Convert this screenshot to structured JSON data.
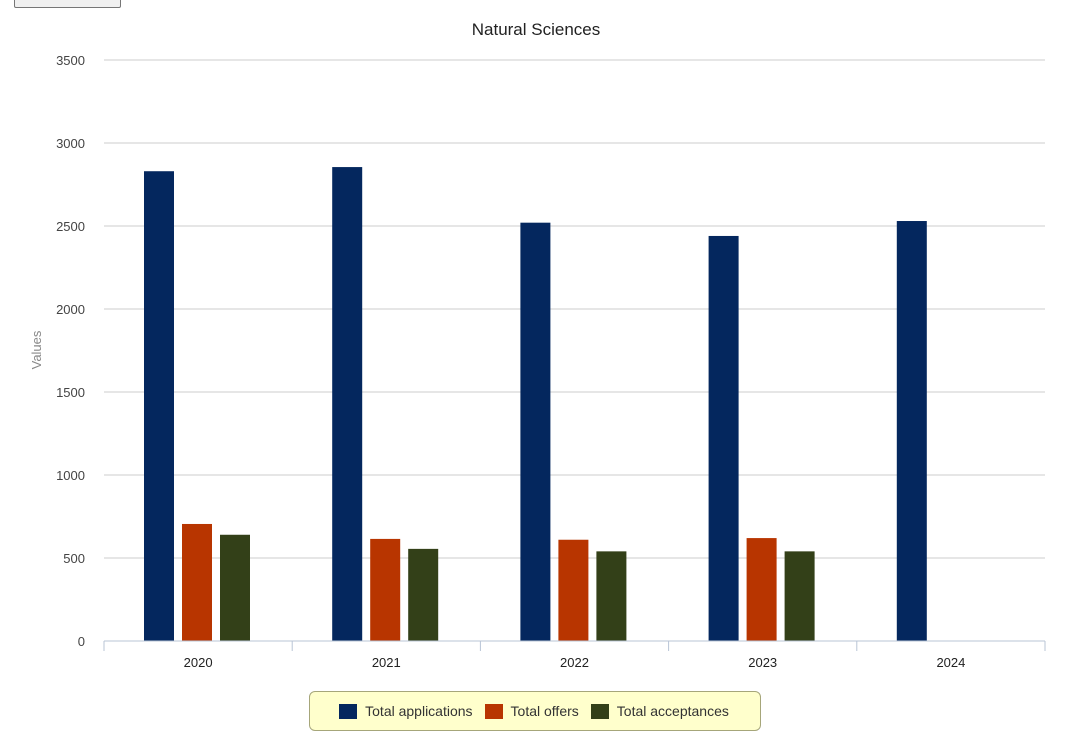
{
  "page": {
    "top_button_label": ""
  },
  "chart_data": {
    "type": "bar",
    "title": "Natural Sciences",
    "xlabel": "",
    "ylabel": "Values",
    "ylim": [
      0,
      3500
    ],
    "yticks": [
      0,
      500,
      1000,
      1500,
      2000,
      2500,
      3000,
      3500
    ],
    "grid": true,
    "legend_position": "bottom",
    "categories": [
      "2020",
      "2021",
      "2022",
      "2023",
      "2024"
    ],
    "series": [
      {
        "name": "Total applications",
        "color": "#04275e",
        "values": [
          2830,
          2855,
          2520,
          2440,
          2530
        ]
      },
      {
        "name": "Total offers",
        "color": "#b83500",
        "values": [
          705,
          615,
          610,
          620,
          null
        ]
      },
      {
        "name": "Total acceptances",
        "color": "#334018",
        "values": [
          640,
          555,
          540,
          540,
          null
        ]
      }
    ]
  }
}
